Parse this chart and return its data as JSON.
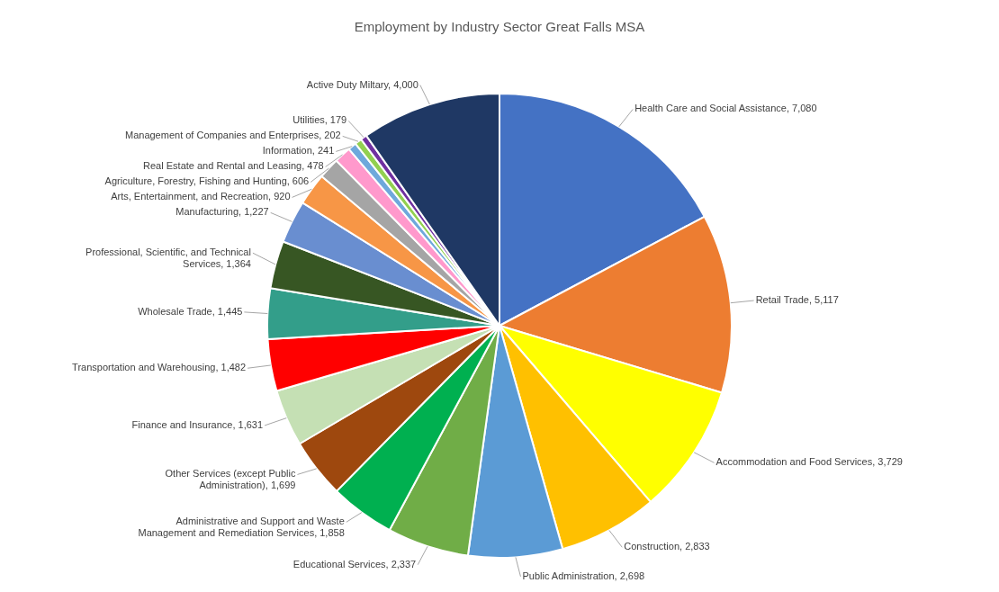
{
  "chart_data": {
    "type": "pie",
    "title": "Employment by Industry Sector Great Falls MSA",
    "categories": [
      "Health Care and Social Assistance",
      "Retail Trade",
      "Accommodation and Food Services",
      "Construction",
      "Public Administration",
      "Educational Services",
      "Administrative and Support and Waste Management and Remediation Services",
      "Other Services (except Public Administration)",
      "Finance and Insurance",
      "Transportation and Warehousing",
      "Wholesale Trade",
      "Professional, Scientific, and Technical Services",
      "Manufacturing",
      "Arts, Entertainment, and Recreation",
      "Agriculture, Forestry, Fishing and Hunting",
      "Real Estate and Rental and Leasing",
      "Information",
      "Management of Companies and Enterprises",
      "Utilities",
      "Active Duty Miltary"
    ],
    "values": [
      7080,
      5117,
      3729,
      2833,
      2698,
      2337,
      1858,
      1699,
      1631,
      1482,
      1445,
      1364,
      1227,
      920,
      606,
      478,
      241,
      202,
      179,
      4000
    ],
    "colors": [
      "#4472c4",
      "#ed7d31",
      "#ffff00",
      "#ffc000",
      "#5b9bd5",
      "#70ad47",
      "#00b050",
      "#9e480e",
      "#c5e0b4",
      "#ff0000",
      "#339e8a",
      "#375623",
      "#698ed0",
      "#f79646",
      "#a5a5a5",
      "#ff99cc",
      "#6fa8dc",
      "#92d050",
      "#7030a0",
      "#1f3864"
    ],
    "value_labels": [
      "7,080",
      "5,117",
      "3,729",
      "2,833",
      "2,698",
      "2,337",
      "1,858",
      "1,699",
      "1,631",
      "1,482",
      "1,445",
      "1,364",
      "1,227",
      "920",
      "606",
      "478",
      "241",
      "202",
      "179",
      "4,000"
    ],
    "legend": false
  }
}
